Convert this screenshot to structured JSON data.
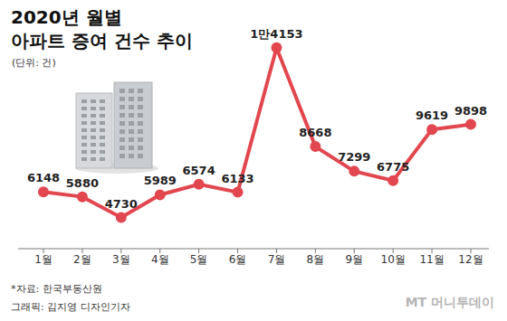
{
  "chart_data": {
    "type": "line",
    "title": [
      "2020년 월별",
      "아파트 증여 건수 추이"
    ],
    "subtitle": "(단위: 건)",
    "categories": [
      "1월",
      "2월",
      "3월",
      "4월",
      "5월",
      "6월",
      "7월",
      "8월",
      "9월",
      "10월",
      "11월",
      "12월"
    ],
    "values": [
      6148,
      5880,
      4730,
      5989,
      6574,
      6133,
      14153,
      8668,
      7299,
      6775,
      9619,
      9898
    ],
    "value_labels": [
      "6148",
      "5880",
      "4730",
      "5989",
      "6574",
      "6133",
      "1만4153",
      "8668",
      "7299",
      "6775",
      "9619",
      "9898"
    ],
    "color": "#e2474f",
    "marker": "circle",
    "data_labels": true,
    "grid": false,
    "tick_labels": "x",
    "ylim": [
      3000,
      15300
    ],
    "source": "*자료: 한국부동산원",
    "credit": "그래픽: 김지영 디자인기자",
    "logo": "MT 머니투데이"
  }
}
